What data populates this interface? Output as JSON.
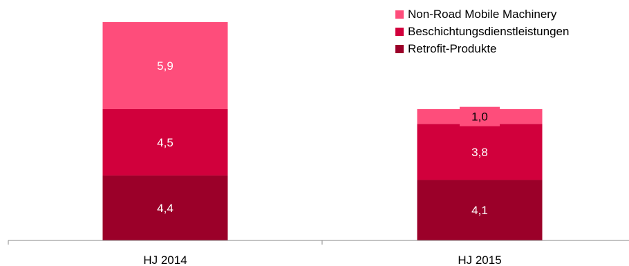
{
  "chart_data": {
    "type": "bar",
    "stacked": true,
    "categories": [
      "HJ 2014",
      "HJ 2015"
    ],
    "series": [
      {
        "name": "Retrofit-Produkte",
        "values": [
          4.4,
          4.1
        ],
        "labels": [
          "4,4",
          "4,1"
        ],
        "color": "#9b0029"
      },
      {
        "name": "Beschichtungsdienstleistungen",
        "values": [
          4.5,
          3.8
        ],
        "labels": [
          "4,5",
          "3,8"
        ],
        "color": "#d1003c"
      },
      {
        "name": "Non-Road Mobile Machinery",
        "values": [
          5.9,
          1.0
        ],
        "labels": [
          "5,9",
          "1,0"
        ],
        "color": "#fe4d7b"
      }
    ],
    "legend": [
      {
        "name": "Non-Road Mobile Machinery",
        "color": "#fe4d7b"
      },
      {
        "name": "Beschichtungsdienstleistungen",
        "color": "#d1003c"
      },
      {
        "name": "Retrofit-Produkte",
        "color": "#9b0029"
      }
    ],
    "legend_position": "top-right",
    "ylim": [
      0,
      15.6
    ],
    "grid": false,
    "title": "",
    "xlabel": "",
    "ylabel": ""
  }
}
